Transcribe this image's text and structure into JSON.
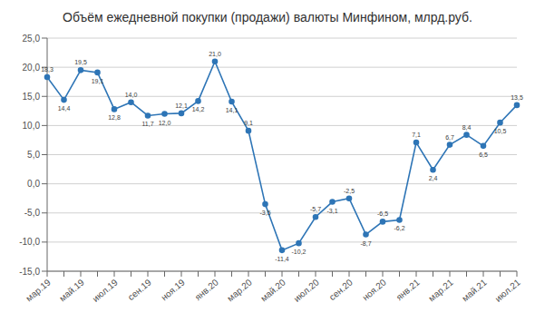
{
  "chart_data": {
    "type": "line",
    "title": "Объём ежедневной покупки (продажи) валюты Минфином, млрд.руб.",
    "categories": [
      "мар.19",
      null,
      "май.19",
      null,
      "июл.19",
      null,
      "сен.19",
      null,
      "ноя.19",
      null,
      "янв.20",
      null,
      "мар.20",
      null,
      "май.20",
      null,
      "июл.20",
      null,
      "сен.20",
      null,
      "ноя.20",
      null,
      "янв.21",
      null,
      "мар.21",
      null,
      "май.21",
      null,
      "июл.21"
    ],
    "values": [
      18.3,
      14.4,
      19.5,
      19.1,
      12.8,
      14.0,
      11.7,
      12.0,
      12.1,
      14.2,
      21.0,
      14.1,
      9.1,
      -3.5,
      -11.4,
      -10.2,
      -5.7,
      -3.1,
      -2.5,
      -8.7,
      -6.5,
      -6.2,
      7.1,
      2.4,
      6.7,
      8.4,
      6.5,
      10.5,
      13.5
    ],
    "value_labels": [
      "18,3",
      "14,4",
      "19,5",
      "19,1",
      "12,8",
      "14,0",
      "11,7",
      "12,0",
      "12,1",
      "14,2",
      "21,0",
      "14,1",
      "9,1",
      "-3,5",
      "-11,4",
      "-10,2",
      "-5,7",
      "-3,1",
      "-2,5",
      "-8,7",
      "-6,5",
      "-6,2",
      "7,1",
      "2,4",
      "6,7",
      "8,4",
      "6,5",
      "10,5",
      "13,5"
    ],
    "data_labels": true,
    "color": "#2E75B6",
    "marker": "circle",
    "ylim": [
      -15,
      25
    ],
    "yticks": [
      {
        "value": -15,
        "label": "-15,0"
      },
      {
        "value": -10,
        "label": "-10,0"
      },
      {
        "value": -5,
        "label": "-5,0"
      },
      {
        "value": 0,
        "label": "0,0"
      },
      {
        "value": 5,
        "label": "5,0"
      },
      {
        "value": 10,
        "label": "10,0"
      },
      {
        "value": 15,
        "label": "15,0"
      },
      {
        "value": 20,
        "label": "20,0"
      },
      {
        "value": 25,
        "label": "25,0"
      }
    ],
    "grid": true
  }
}
